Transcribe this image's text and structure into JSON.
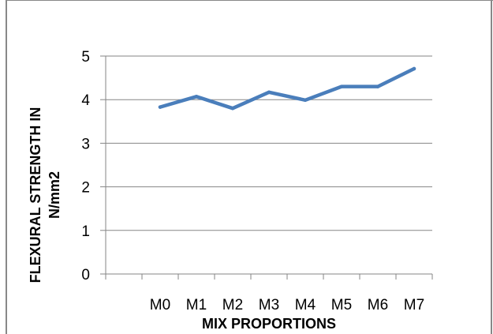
{
  "chart_data": {
    "type": "line",
    "categories": [
      "M0",
      "M1",
      "M2",
      "M3",
      "M4",
      "M5",
      "M6",
      "M7"
    ],
    "series": [
      {
        "values": [
          3.83,
          4.07,
          3.8,
          4.17,
          3.99,
          4.3,
          4.3,
          4.71
        ],
        "color": "#4a7ebb"
      }
    ],
    "xlabel": "MIX PROPORTIONS",
    "ylabel_lines": [
      "FLEXURAL STRENGTH IN",
      "N/mm2"
    ],
    "ylim": [
      0,
      5
    ],
    "yticks": [
      0,
      1,
      2,
      3,
      4,
      5
    ],
    "grid": true,
    "legend": "none"
  }
}
